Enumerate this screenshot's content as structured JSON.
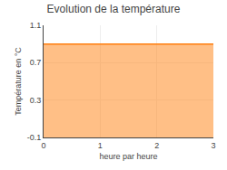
{
  "chart_data": {
    "type": "area",
    "title": "Evolution de la température",
    "xlabel": "heure par heure",
    "ylabel": "Température en °C",
    "x": [
      0,
      1,
      2,
      3
    ],
    "values": [
      0.9,
      0.9,
      0.9,
      0.9
    ],
    "xlim": [
      0,
      3
    ],
    "xticks": [
      0,
      1,
      2,
      3
    ],
    "ylim": [
      -0.1,
      1.1
    ],
    "yticks": [
      -0.1,
      0.3,
      0.7,
      1.1
    ],
    "grid": true
  }
}
